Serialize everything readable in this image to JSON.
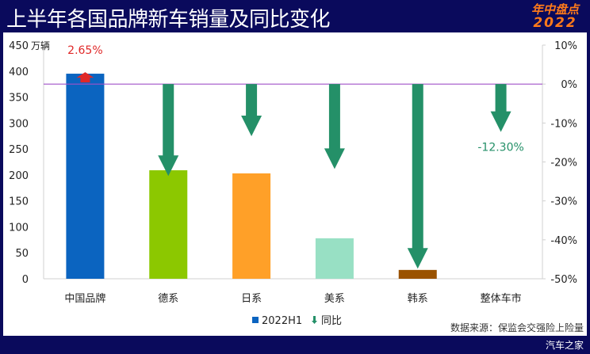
{
  "header": {
    "title": "上半年各国品牌新车销量及同比变化",
    "logo_line1": "年中盘点",
    "logo_line2": "2022"
  },
  "footer": {
    "source": "数据来源：保监会交强险上险量",
    "credit": "汽车之家"
  },
  "chart_data": {
    "type": "bar",
    "categories": [
      "中国品牌",
      "德系",
      "日系",
      "美系",
      "韩系",
      "整体车市"
    ],
    "left_axis": {
      "unit": "万辆",
      "range": [
        0,
        450
      ],
      "ticks": [
        0,
        50,
        100,
        150,
        200,
        250,
        300,
        350,
        400,
        450
      ]
    },
    "right_axis": {
      "range": [
        -50,
        10
      ],
      "ticks": [
        "10%",
        "0%",
        "-10%",
        "-20%",
        "-30%",
        "-40%",
        "-50%"
      ],
      "tick_values": [
        10,
        0,
        -10,
        -20,
        -30,
        -40,
        -50
      ]
    },
    "series": [
      {
        "name": "2022H1",
        "kind": "bar",
        "axis": "left",
        "values": [
          395,
          209,
          203,
          78,
          17,
          null
        ],
        "colors": [
          "#0b64c0",
          "#8cc800",
          "#ffa028",
          "#98e0c4",
          "#9a5200",
          "#ffffff"
        ]
      },
      {
        "name": "同比",
        "kind": "arrow",
        "axis": "right",
        "values": [
          2.65,
          -23.6,
          -13.4,
          -21.8,
          -47.4,
          -12.3
        ],
        "labels": [
          "2.65%",
          "",
          "",
          "",
          "",
          "-12.30%"
        ],
        "colors": {
          "up": "#e02828",
          "down": "#249068"
        }
      }
    ],
    "legend": {
      "placement": "bottom",
      "items": [
        "2022H1",
        "同比"
      ]
    },
    "reference_line": {
      "value": 0,
      "axis": "right",
      "color": "#a050c8"
    },
    "grid": false
  }
}
